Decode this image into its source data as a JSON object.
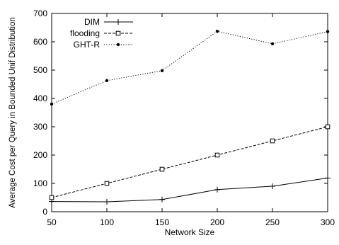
{
  "chart_data": {
    "type": "line",
    "title": "",
    "xlabel": "Network Size",
    "ylabel": "Average Cost per Query in Bounded Unif Distribution",
    "x": [
      50,
      100,
      150,
      200,
      250,
      300
    ],
    "xticks": [
      "50",
      "100",
      "150",
      "200",
      "250",
      "300"
    ],
    "yticks": [
      "0",
      "100",
      "200",
      "300",
      "400",
      "500",
      "600",
      "700"
    ],
    "xlim": [
      50,
      300
    ],
    "ylim": [
      0,
      700
    ],
    "grid": false,
    "legend_position": "top-left",
    "series": [
      {
        "name": "DIM",
        "marker": "plus",
        "dash": "solid",
        "values": [
          36,
          35,
          43,
          78,
          90,
          119
        ]
      },
      {
        "name": "flooding",
        "marker": "square",
        "dash": "dashed",
        "values": [
          50,
          100,
          150,
          200,
          250,
          300
        ]
      },
      {
        "name": "GHT-R",
        "marker": "dot",
        "dash": "dotted",
        "values": [
          380,
          463,
          498,
          637,
          593,
          636
        ]
      }
    ]
  }
}
